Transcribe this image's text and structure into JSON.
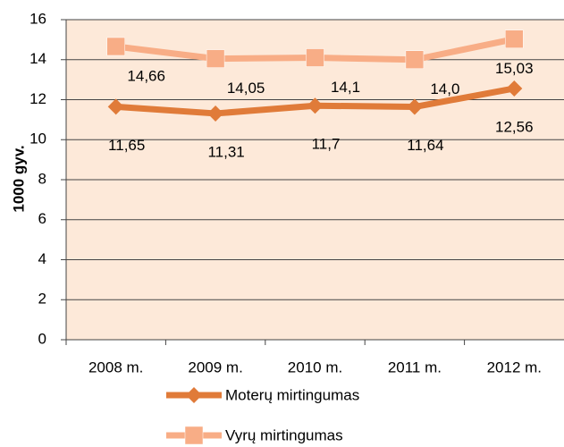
{
  "chart_data": {
    "type": "line",
    "ylabel": "1000 gyv.",
    "categories": [
      "2008 m.",
      "2009 m.",
      "2010 m.",
      "2011 m.",
      "2012 m."
    ],
    "series": [
      {
        "name": "Moterų mirtingumas",
        "color": "#e07b39",
        "marker": "diamond",
        "values": [
          11.65,
          11.31,
          11.7,
          11.64,
          12.56
        ],
        "value_labels": [
          "11,65",
          "11,31",
          "11,7",
          "11,64",
          "12,56"
        ]
      },
      {
        "name": "Vyrų mirtingumas",
        "color": "#f8ad86",
        "marker": "square",
        "values": [
          14.66,
          14.05,
          14.1,
          14.0,
          15.03
        ],
        "value_labels": [
          "14,66",
          "14,05",
          "14,1",
          "14,0",
          "15,03"
        ]
      }
    ],
    "ylim": [
      0,
      16
    ],
    "yticks": [
      0,
      2,
      4,
      6,
      8,
      10,
      12,
      14,
      16
    ],
    "grid": true,
    "legend": "bottom",
    "plot_background": "#fde9d9"
  }
}
